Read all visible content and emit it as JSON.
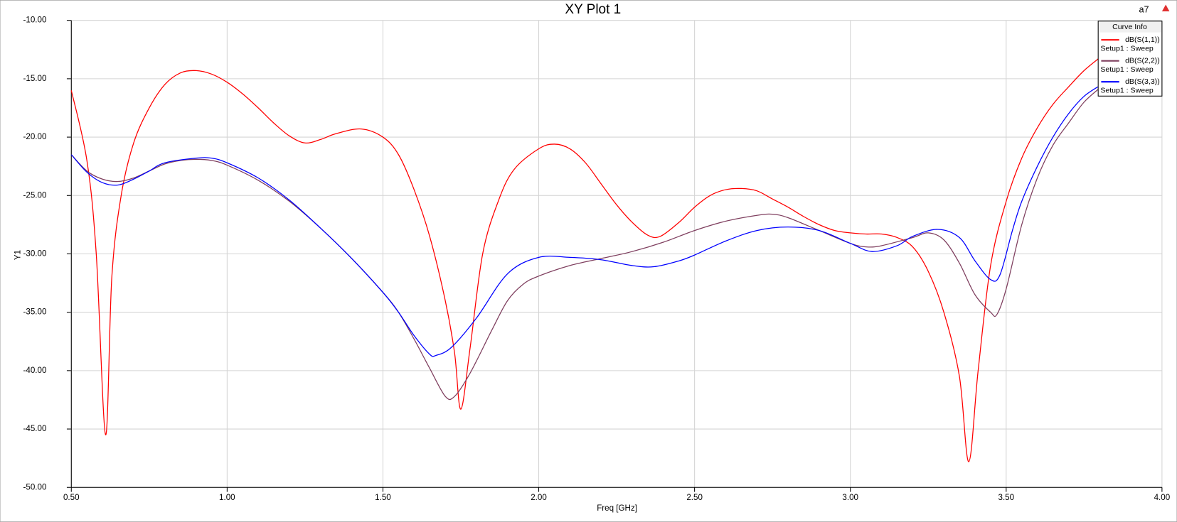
{
  "chart_data": {
    "type": "line",
    "title": "XY Plot 1",
    "corner_label": "a7",
    "y_label": "Y1",
    "x_label": "Freq [GHz]",
    "legend_title": "Curve Info",
    "legend_position": "upper right",
    "grid": true,
    "xlim": [
      0.5,
      4.0
    ],
    "xticks": [
      {
        "value": 0.5,
        "label": "0.50"
      },
      {
        "value": 1.0,
        "label": "1.00"
      },
      {
        "value": 1.5,
        "label": "1.50"
      },
      {
        "value": 2.0,
        "label": "2.00"
      },
      {
        "value": 2.5,
        "label": "2.50"
      },
      {
        "value": 3.0,
        "label": "3.00"
      },
      {
        "value": 3.5,
        "label": "3.50"
      },
      {
        "value": 4.0,
        "label": "4.00"
      }
    ],
    "ylim": [
      -50,
      -10
    ],
    "yticks": [
      {
        "value": -10,
        "label": "-10.00"
      },
      {
        "value": -15,
        "label": "-15.00"
      },
      {
        "value": -20,
        "label": "-20.00"
      },
      {
        "value": -25,
        "label": "-25.00"
      },
      {
        "value": -30,
        "label": "-30.00"
      },
      {
        "value": -35,
        "label": "-35.00"
      },
      {
        "value": -40,
        "label": "-40.00"
      },
      {
        "value": -45,
        "label": "-45.00"
      },
      {
        "value": -50,
        "label": "-50.00"
      }
    ],
    "series": [
      {
        "name": "dB(S(1,1))",
        "setup": "Setup1 : Sweep",
        "color": "#ff0000",
        "x": [
          0.5,
          0.55,
          0.58,
          0.61,
          0.63,
          0.66,
          0.7,
          0.75,
          0.8,
          0.85,
          0.9,
          0.95,
          1.0,
          1.05,
          1.1,
          1.15,
          1.2,
          1.25,
          1.3,
          1.35,
          1.43,
          1.5,
          1.55,
          1.6,
          1.65,
          1.7,
          1.73,
          1.75,
          1.78,
          1.82,
          1.87,
          1.92,
          2.0,
          2.05,
          2.1,
          2.15,
          2.2,
          2.25,
          2.3,
          2.35,
          2.39,
          2.45,
          2.5,
          2.55,
          2.6,
          2.65,
          2.7,
          2.75,
          2.8,
          2.85,
          2.9,
          2.95,
          3.0,
          3.05,
          3.1,
          3.15,
          3.2,
          3.25,
          3.3,
          3.35,
          3.38,
          3.41,
          3.45,
          3.5,
          3.55,
          3.6,
          3.65,
          3.7,
          3.75,
          3.8
        ],
        "values": [
          -16.0,
          -22.0,
          -30.0,
          -45.5,
          -32.0,
          -25.0,
          -20.5,
          -17.5,
          -15.5,
          -14.5,
          -14.3,
          -14.6,
          -15.3,
          -16.3,
          -17.5,
          -18.8,
          -19.9,
          -20.5,
          -20.2,
          -19.7,
          -19.3,
          -20.0,
          -21.5,
          -24.5,
          -28.5,
          -34.0,
          -38.5,
          -43.3,
          -38.0,
          -30.0,
          -25.5,
          -22.8,
          -21.0,
          -20.6,
          -21.0,
          -22.2,
          -24.0,
          -25.8,
          -27.3,
          -28.4,
          -28.5,
          -27.3,
          -26.0,
          -25.0,
          -24.5,
          -24.4,
          -24.6,
          -25.3,
          -26.0,
          -26.8,
          -27.5,
          -28.0,
          -28.2,
          -28.3,
          -28.3,
          -28.6,
          -29.4,
          -31.5,
          -35.0,
          -40.5,
          -47.8,
          -40.0,
          -31.0,
          -25.5,
          -21.8,
          -19.2,
          -17.2,
          -15.7,
          -14.3,
          -13.2
        ]
      },
      {
        "name": "dB(S(2,2))",
        "setup": "Setup1 : Sweep",
        "color": "#7f3f5f",
        "x": [
          0.5,
          0.55,
          0.6,
          0.65,
          0.7,
          0.75,
          0.8,
          0.85,
          0.9,
          0.95,
          1.0,
          1.1,
          1.2,
          1.3,
          1.4,
          1.5,
          1.55,
          1.6,
          1.65,
          1.7,
          1.73,
          1.78,
          1.85,
          1.9,
          1.95,
          2.0,
          2.1,
          2.2,
          2.3,
          2.4,
          2.5,
          2.6,
          2.7,
          2.75,
          2.8,
          2.9,
          3.0,
          3.05,
          3.1,
          3.2,
          3.25,
          3.3,
          3.35,
          3.4,
          3.45,
          3.47,
          3.5,
          3.55,
          3.6,
          3.65,
          3.7,
          3.75,
          3.8
        ],
        "values": [
          -21.5,
          -22.9,
          -23.6,
          -23.8,
          -23.5,
          -22.9,
          -22.3,
          -22.0,
          -21.9,
          -22.0,
          -22.4,
          -23.7,
          -25.5,
          -27.8,
          -30.4,
          -33.3,
          -35.0,
          -37.3,
          -39.8,
          -42.2,
          -42.2,
          -40.2,
          -36.5,
          -34.0,
          -32.6,
          -31.9,
          -31.0,
          -30.4,
          -29.8,
          -29.0,
          -28.0,
          -27.2,
          -26.7,
          -26.6,
          -26.9,
          -28.0,
          -29.1,
          -29.4,
          -29.3,
          -28.6,
          -28.2,
          -28.8,
          -30.8,
          -33.5,
          -35.0,
          -35.2,
          -33.0,
          -27.5,
          -23.5,
          -20.7,
          -18.8,
          -17.0,
          -15.8
        ]
      },
      {
        "name": "dB(S(3,3))",
        "setup": "Setup1 : Sweep",
        "color": "#0000ff",
        "x": [
          0.5,
          0.55,
          0.6,
          0.65,
          0.7,
          0.75,
          0.8,
          0.9,
          0.95,
          1.0,
          1.1,
          1.2,
          1.3,
          1.4,
          1.5,
          1.55,
          1.6,
          1.65,
          1.67,
          1.72,
          1.8,
          1.9,
          2.0,
          2.1,
          2.2,
          2.3,
          2.37,
          2.45,
          2.5,
          2.6,
          2.7,
          2.8,
          2.9,
          3.0,
          3.07,
          3.15,
          3.2,
          3.28,
          3.35,
          3.4,
          3.45,
          3.48,
          3.52,
          3.55,
          3.6,
          3.65,
          3.7,
          3.75,
          3.8
        ],
        "values": [
          -21.5,
          -23.0,
          -23.9,
          -24.1,
          -23.6,
          -22.9,
          -22.2,
          -21.8,
          -21.8,
          -22.2,
          -23.5,
          -25.4,
          -27.8,
          -30.4,
          -33.3,
          -35.0,
          -37.0,
          -38.6,
          -38.7,
          -38.0,
          -35.5,
          -31.7,
          -30.3,
          -30.3,
          -30.5,
          -31.0,
          -31.1,
          -30.6,
          -30.1,
          -28.9,
          -28.0,
          -27.7,
          -28.0,
          -29.1,
          -29.8,
          -29.3,
          -28.5,
          -27.9,
          -28.6,
          -30.6,
          -32.2,
          -31.8,
          -28.0,
          -25.5,
          -22.5,
          -20.0,
          -18.0,
          -16.5,
          -15.6
        ]
      }
    ]
  }
}
